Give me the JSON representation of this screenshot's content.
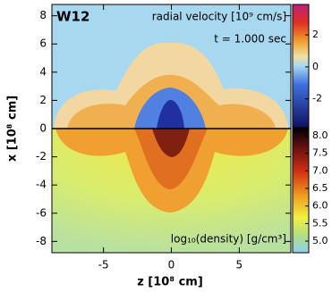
{
  "chart_data": {
    "type": "image",
    "label": "W12",
    "time_label": "t = 1.000 sec",
    "xlabel": "z [10⁸ cm]",
    "ylabel": "x [10⁸ cm]",
    "xlim": [
      -8.8,
      8.8
    ],
    "xticks": [
      -5,
      0,
      5
    ],
    "ylim": [
      -8.8,
      8.8
    ],
    "yticks": [
      -8,
      -6,
      -4,
      -2,
      0,
      2,
      4,
      6,
      8
    ],
    "colorbars": [
      {
        "title": "radial velocity [10⁹ cm/s]",
        "lim": [
          -3.8,
          3.9
        ],
        "ticks": [
          -2,
          0,
          2
        ]
      },
      {
        "title": "log₁₀(density) [g/cm³]",
        "lim": [
          4.67,
          8.23
        ],
        "ticks": [
          {
            "value": 5,
            "label": "5.0"
          },
          {
            "value": 5.5,
            "label": "5.5"
          },
          {
            "value": 6,
            "label": "6.0"
          },
          {
            "value": 6.5,
            "label": "6.5"
          },
          {
            "value": 7,
            "label": "7.0"
          },
          {
            "value": 7.5,
            "label": "7.5"
          },
          {
            "value": 8,
            "label": "8.0"
          }
        ]
      }
    ]
  }
}
